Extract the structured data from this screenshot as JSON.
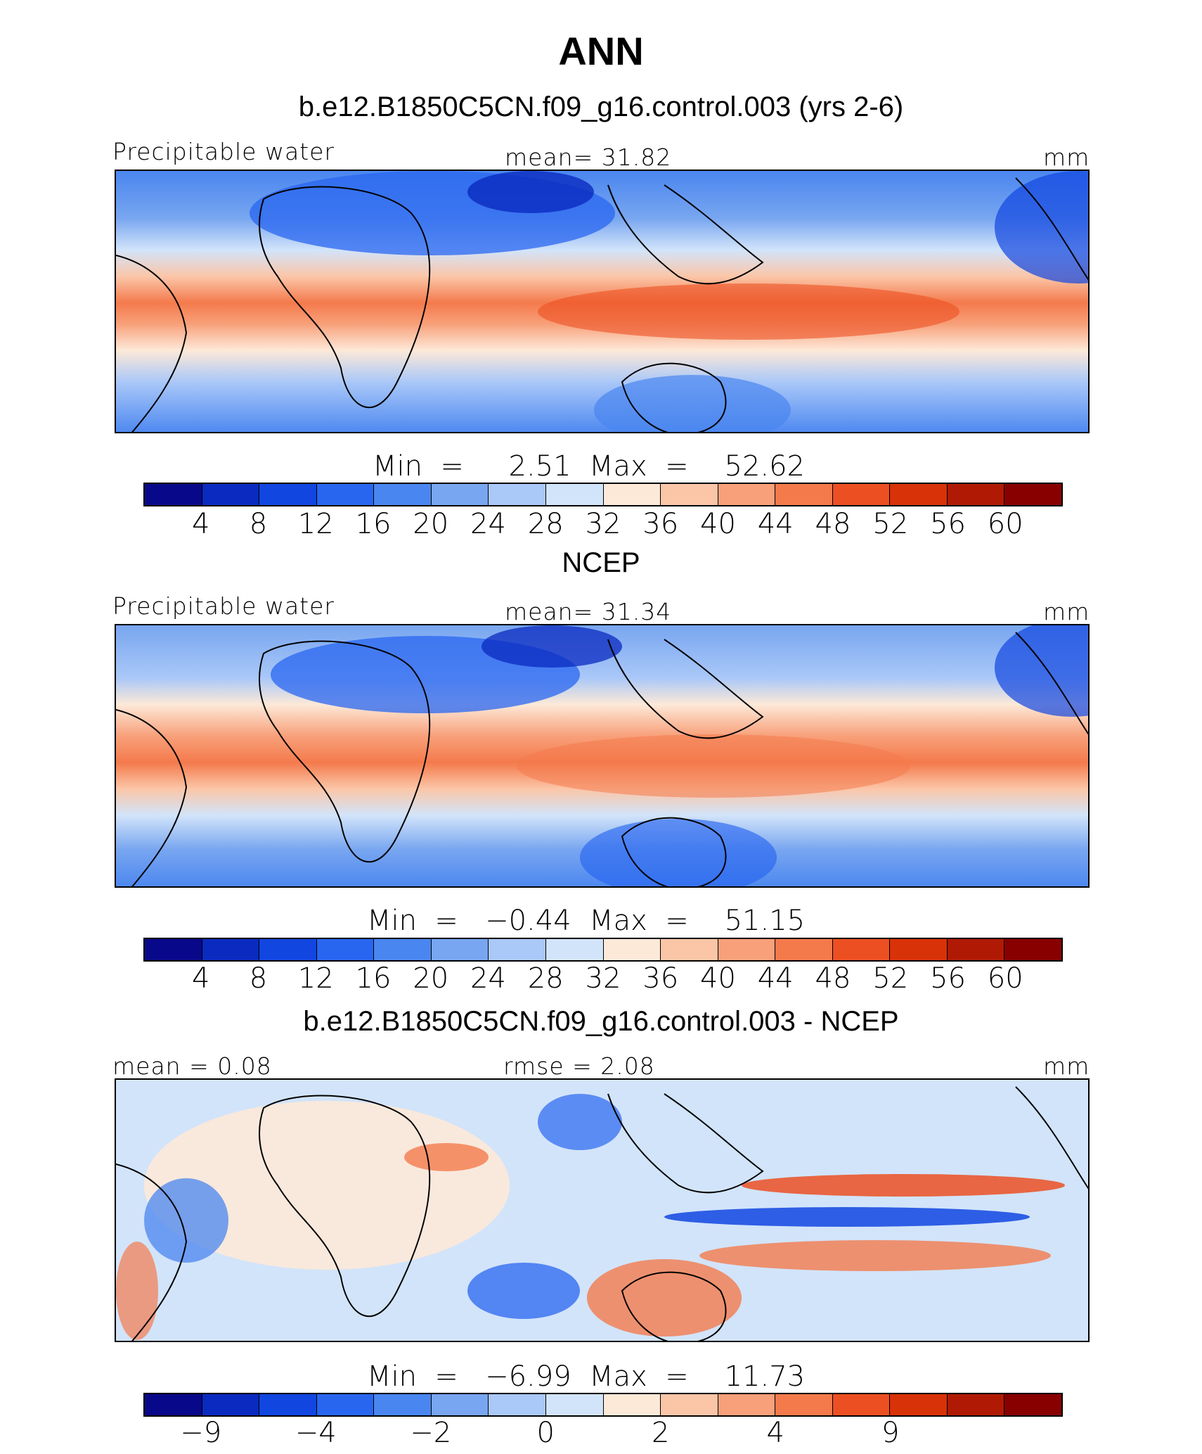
{
  "title": "ANN",
  "colors": [
    "#08088a",
    "#0a2ac0",
    "#1146e0",
    "#2866f0",
    "#4a86f0",
    "#78a6f0",
    "#aac8f8",
    "#d2e4fa",
    "#fde9d8",
    "#fbc6a8",
    "#f8a07a",
    "#f47a4c",
    "#ec5022",
    "#d83208",
    "#b01a04",
    "#880000"
  ],
  "panels": [
    {
      "subtitle": "b.e12.B1850C5CN.f09_g16.control.003 (yrs 2-6)",
      "left_label": "Precipitable  water",
      "center_label": "mean=   31.82",
      "units": "mm",
      "minmax": "Min  =     2.51  Max  =    52.62",
      "ticks": [
        "4",
        "8",
        "12",
        "16",
        "20",
        "24",
        "28",
        "32",
        "36",
        "40",
        "44",
        "48",
        "52",
        "56",
        "60"
      ]
    },
    {
      "subtitle": "NCEP",
      "left_label": "Precipitable  water",
      "center_label": "mean=   31.34",
      "units": "mm",
      "minmax": "Min  =   −0.44  Max  =    51.15",
      "ticks": [
        "4",
        "8",
        "12",
        "16",
        "20",
        "24",
        "28",
        "32",
        "36",
        "40",
        "44",
        "48",
        "52",
        "56",
        "60"
      ]
    },
    {
      "subtitle": "b.e12.B1850C5CN.f09_g16.control.003 - NCEP",
      "left_label": "mean  =    0.08",
      "center_label": "rmse  =     2.08",
      "units": "mm",
      "minmax": "Min  =   −6.99  Max  =    11.73",
      "ticks": [
        "−9",
        "",
        "−4",
        "",
        "−2",
        "",
        "0",
        "",
        "2",
        "",
        "4",
        "",
        "9",
        "",
        ""
      ]
    }
  ]
}
